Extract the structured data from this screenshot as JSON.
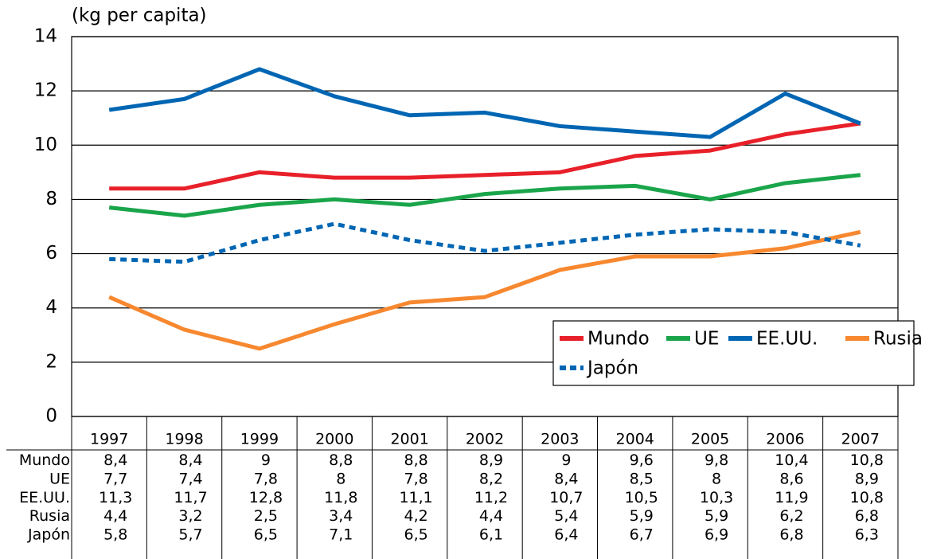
{
  "chart_data": {
    "type": "line",
    "y_axis_label": "(kg per capita)",
    "categories": [
      "1997",
      "1998",
      "1999",
      "2000",
      "2001",
      "2002",
      "2003",
      "2004",
      "2005",
      "2006",
      "2007"
    ],
    "series": [
      {
        "name": "Mundo",
        "color": "#e8202a",
        "style": "solid",
        "values": [
          8.4,
          8.4,
          9,
          8.8,
          8.8,
          8.9,
          9,
          9.6,
          9.8,
          10.4,
          10.8
        ],
        "value_labels": [
          "8,4",
          "8,4",
          "9",
          "8,8",
          "8,8",
          "8,9",
          "9",
          "9,6",
          "9,8",
          "10,4",
          "10,8"
        ]
      },
      {
        "name": "UE",
        "color": "#1aa54b",
        "style": "solid",
        "values": [
          7.7,
          7.4,
          7.8,
          8,
          7.8,
          8.2,
          8.4,
          8.5,
          8,
          8.6,
          8.9
        ],
        "value_labels": [
          "7,7",
          "7,4",
          "7,8",
          "8",
          "7,8",
          "8,2",
          "8,4",
          "8,5",
          "8",
          "8,6",
          "8,9"
        ]
      },
      {
        "name": "EE.UU.",
        "color": "#0066b3",
        "style": "solid",
        "values": [
          11.3,
          11.7,
          12.8,
          11.8,
          11.1,
          11.2,
          10.7,
          10.5,
          10.3,
          11.9,
          10.8
        ],
        "value_labels": [
          "11,3",
          "11,7",
          "12,8",
          "11,8",
          "11,1",
          "11,2",
          "10,7",
          "10,5",
          "10,3",
          "11,9",
          "10,8"
        ]
      },
      {
        "name": "Rusia",
        "color": "#f7882f",
        "style": "solid",
        "values": [
          4.4,
          3.2,
          2.5,
          3.4,
          4.2,
          4.4,
          5.4,
          5.9,
          5.9,
          6.2,
          6.8
        ],
        "value_labels": [
          "4,4",
          "3,2",
          "2,5",
          "3,4",
          "4,2",
          "4,4",
          "5,4",
          "5,9",
          "5,9",
          "6,2",
          "6,8"
        ]
      },
      {
        "name": "Japón",
        "color": "#0066b3",
        "style": "dotted",
        "values": [
          5.8,
          5.7,
          6.5,
          7.1,
          6.5,
          6.1,
          6.4,
          6.7,
          6.9,
          6.8,
          6.3
        ],
        "value_labels": [
          "5,8",
          "5,7",
          "6,5",
          "7,1",
          "6,5",
          "6,1",
          "6,4",
          "6,7",
          "6,9",
          "6,8",
          "6,3"
        ]
      }
    ],
    "ylim": [
      0,
      14
    ],
    "yticks": [
      0,
      2,
      4,
      6,
      8,
      10,
      12,
      14
    ],
    "grid": true,
    "legend": "lower right"
  }
}
